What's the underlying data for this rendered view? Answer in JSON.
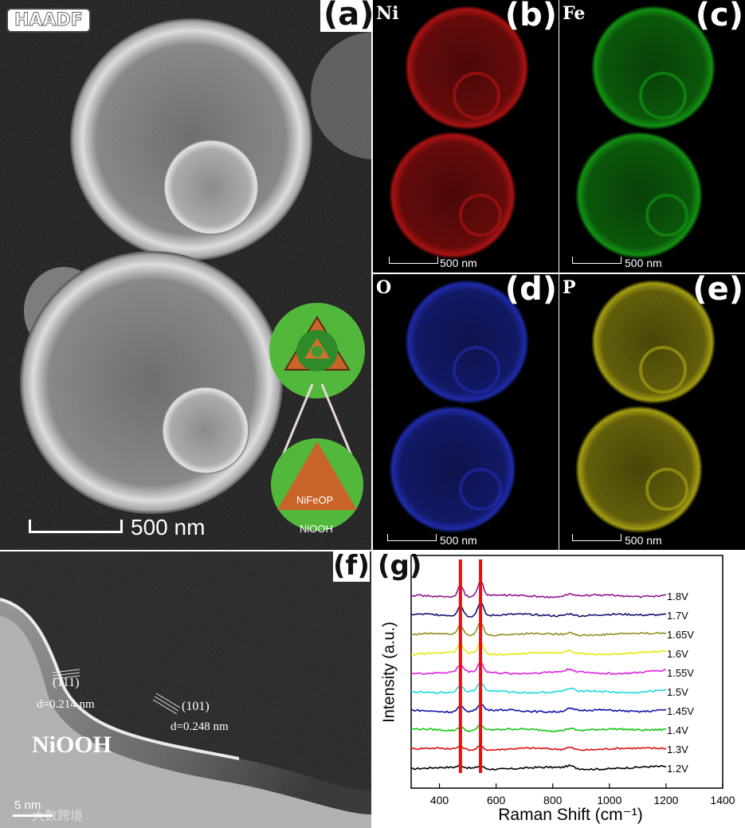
{
  "panel_a": {
    "badge": "HAADF",
    "label": "(a)",
    "scale": "500 nm",
    "inset": {
      "core_label": "NiFeOP",
      "shell_label": "NiOOH"
    }
  },
  "maps": [
    {
      "element": "Ni",
      "label": "(b)",
      "scale": "500 nm",
      "color": "#e01818"
    },
    {
      "element": "Fe",
      "label": "(c)",
      "scale": "500 nm",
      "color": "#18c018"
    },
    {
      "element": "O",
      "label": "(d)",
      "scale": "500 nm",
      "color": "#2838e0"
    },
    {
      "element": "P",
      "label": "(e)",
      "scale": "500 nm",
      "color": "#d8d018"
    }
  ],
  "panel_f": {
    "label": "(f)",
    "plane1": "(111)",
    "d1": "d=0.214 nm",
    "plane2": "(101)",
    "d2": "d=0.248 nm",
    "phase": "NiOOH",
    "scale": "5 nm",
    "watermark": "大数跨境"
  },
  "chart_data": {
    "type": "line",
    "label": "(g)",
    "xlabel": "Raman Shift (cm⁻¹)",
    "ylabel": "Intensity (a.u.)",
    "xlim": [
      300,
      1400
    ],
    "xticks": [
      400,
      600,
      800,
      1000,
      1200,
      1400
    ],
    "marker_lines": [
      474,
      545
    ],
    "marker_color": "#e01010",
    "series": [
      {
        "name": "1.2V",
        "color": "#000000",
        "offset": 0.0
      },
      {
        "name": "1.3V",
        "color": "#e01010",
        "offset": 1.0
      },
      {
        "name": "1.4V",
        "color": "#10c810",
        "offset": 2.0
      },
      {
        "name": "1.45V",
        "color": "#1010a8",
        "offset": 3.0
      },
      {
        "name": "1.5V",
        "color": "#20d8e0",
        "offset": 4.0
      },
      {
        "name": "1.55V",
        "color": "#e020e0",
        "offset": 5.0
      },
      {
        "name": "1.6V",
        "color": "#e8e810",
        "offset": 6.0
      },
      {
        "name": "1.65V",
        "color": "#909020",
        "offset": 7.0
      },
      {
        "name": "1.7V",
        "color": "#101070",
        "offset": 8.0
      },
      {
        "name": "1.8V",
        "color": "#901890",
        "offset": 9.0
      }
    ]
  }
}
